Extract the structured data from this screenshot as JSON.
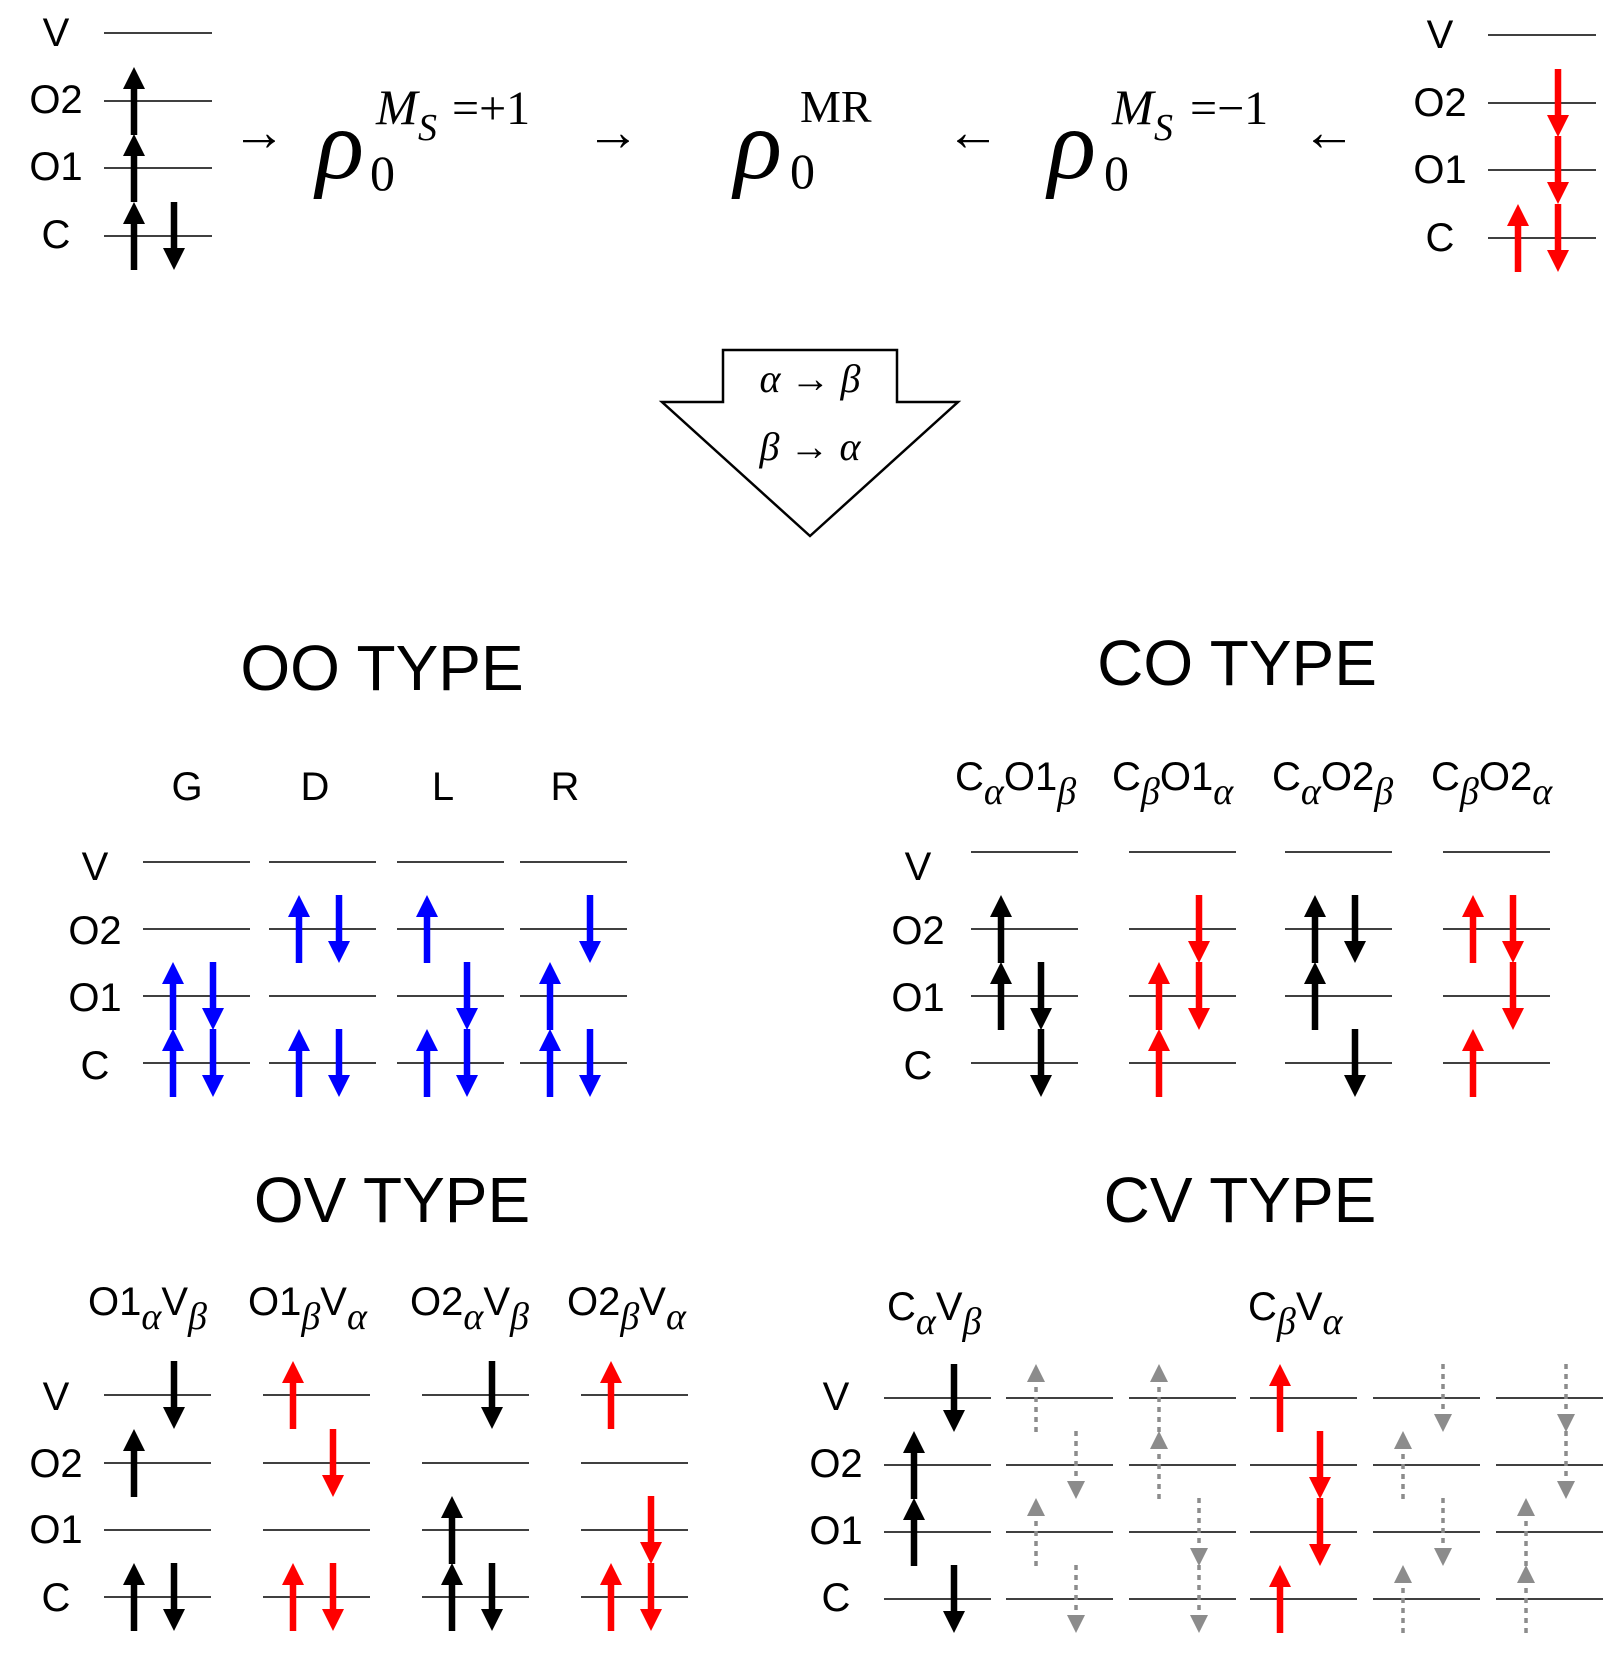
{
  "colors": {
    "black": "#000000",
    "red": "#ff0000",
    "blue": "#0000ff",
    "gray": "#8c8c8c"
  },
  "top": {
    "left_levels": [
      "V",
      "O2",
      "O1",
      "C"
    ],
    "right_levels": [
      "V",
      "O2",
      "O1",
      "C"
    ],
    "rho_symbol": "ρ",
    "sub0": "0",
    "ms_plus_M": "M",
    "ms_plus_S": "S",
    "ms_plus_val": "=+1",
    "ms_minus_M": "M",
    "ms_minus_S": "S",
    "ms_minus_val": "=−1",
    "mr_sup": "MR",
    "arrow_right": "→",
    "arrow_left": "←"
  },
  "flip": {
    "line1": "α → β",
    "line2": "β → α"
  },
  "panels": {
    "oo_title": "OO TYPE",
    "co_title": "CO TYPE",
    "ov_title": "OV TYPE",
    "cv_title": "CV TYPE",
    "levels": [
      "V",
      "O2",
      "O1",
      "C"
    ],
    "oo_columns": [
      "G",
      "D",
      "L",
      "R"
    ],
    "co_columns": [
      {
        "base1": "C",
        "sub1": "α",
        "base2": "O1",
        "sub2": "β"
      },
      {
        "base1": "C",
        "sub1": "β",
        "base2": "O1",
        "sub2": "α"
      },
      {
        "base1": "C",
        "sub1": "α",
        "base2": "O2",
        "sub2": "β"
      },
      {
        "base1": "C",
        "sub1": "β",
        "base2": "O2",
        "sub2": "α"
      }
    ],
    "ov_columns": [
      {
        "base1": "O1",
        "sub1": "α",
        "base2": "V",
        "sub2": "β"
      },
      {
        "base1": "O1",
        "sub1": "β",
        "base2": "V",
        "sub2": "α"
      },
      {
        "base1": "O2",
        "sub1": "α",
        "base2": "V",
        "sub2": "β"
      },
      {
        "base1": "O2",
        "sub1": "β",
        "base2": "V",
        "sub2": "α"
      }
    ],
    "cv_columns": [
      {
        "base1": "C",
        "sub1": "α",
        "base2": "V",
        "sub2": "β"
      },
      {
        "base1": "C",
        "sub1": "β",
        "base2": "V",
        "sub2": "α"
      }
    ]
  }
}
